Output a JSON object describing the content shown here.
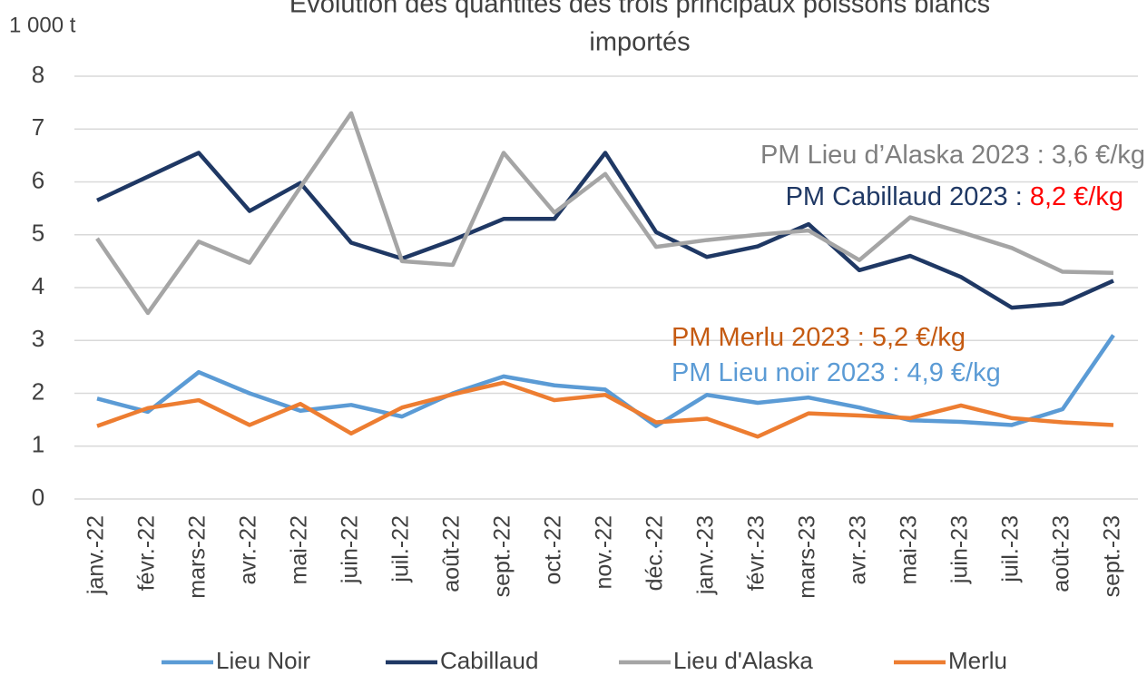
{
  "chart_data": {
    "type": "line",
    "title": [
      "Évolution des quantités des trois principaux poissons blancs",
      "importés"
    ],
    "y_unit": "1 000 t",
    "categories": [
      "janv.-22",
      "févr.-22",
      "mars-22",
      "avr.-22",
      "mai-22",
      "juin-22",
      "juil.-22",
      "août-22",
      "sept.-22",
      "oct.-22",
      "nov.-22",
      "déc.-22",
      "janv.-23",
      "févr.-23",
      "mars-23",
      "avr.-23",
      "mai-23",
      "juin-23",
      "juil.-23",
      "août-23",
      "sept.-23"
    ],
    "series": [
      {
        "name": "Lieu Noir",
        "color": "#5b9bd5",
        "values": [
          1.9,
          1.65,
          2.4,
          2.0,
          1.67,
          1.78,
          1.56,
          2.0,
          2.32,
          2.15,
          2.07,
          1.38,
          1.97,
          1.82,
          1.92,
          1.73,
          1.49,
          1.46,
          1.4,
          1.7,
          3.1
        ]
      },
      {
        "name": "Cabillaud",
        "color": "#1f3864",
        "values": [
          5.65,
          6.1,
          6.55,
          5.45,
          5.98,
          4.85,
          4.55,
          4.9,
          5.3,
          5.3,
          6.55,
          5.05,
          4.58,
          4.78,
          5.2,
          4.33,
          4.6,
          4.2,
          3.62,
          3.7,
          4.13
        ]
      },
      {
        "name": "Lieu d'Alaska",
        "color": "#a5a5a5",
        "values": [
          4.93,
          3.52,
          4.87,
          4.47,
          5.9,
          7.3,
          4.5,
          4.43,
          6.55,
          5.42,
          6.15,
          4.77,
          4.9,
          5.0,
          5.08,
          4.52,
          5.33,
          5.05,
          4.75,
          4.3,
          4.28
        ]
      },
      {
        "name": "Merlu",
        "color": "#ed7d31",
        "values": [
          1.38,
          1.72,
          1.87,
          1.4,
          1.8,
          1.24,
          1.73,
          1.98,
          2.2,
          1.87,
          1.97,
          1.45,
          1.52,
          1.18,
          1.62,
          1.58,
          1.53,
          1.77,
          1.53,
          1.45,
          1.4
        ]
      }
    ],
    "annotations": [
      {
        "parts": [
          {
            "text": "PM Lieu d’Alaska 2023 : 3,6 €/kg",
            "color": "#7f7f7f"
          }
        ]
      },
      {
        "parts": [
          {
            "text": "PM Cabillaud 2023 : ",
            "color": "#1f3864"
          },
          {
            "text": "8,2 €/kg",
            "color": "#ff0000"
          }
        ]
      },
      {
        "parts": [
          {
            "text": "PM Merlu 2023 : 5,2 €/kg",
            "color": "#c55a11"
          }
        ]
      },
      {
        "parts": [
          {
            "text": "PM Lieu noir 2023 : 4,9 €/kg",
            "color": "#5b9bd5"
          }
        ]
      }
    ],
    "ylim": [
      0,
      8
    ],
    "yticks": [
      0,
      1,
      2,
      3,
      4,
      5,
      6,
      7,
      8
    ],
    "grid": true,
    "legend": "bottom"
  }
}
